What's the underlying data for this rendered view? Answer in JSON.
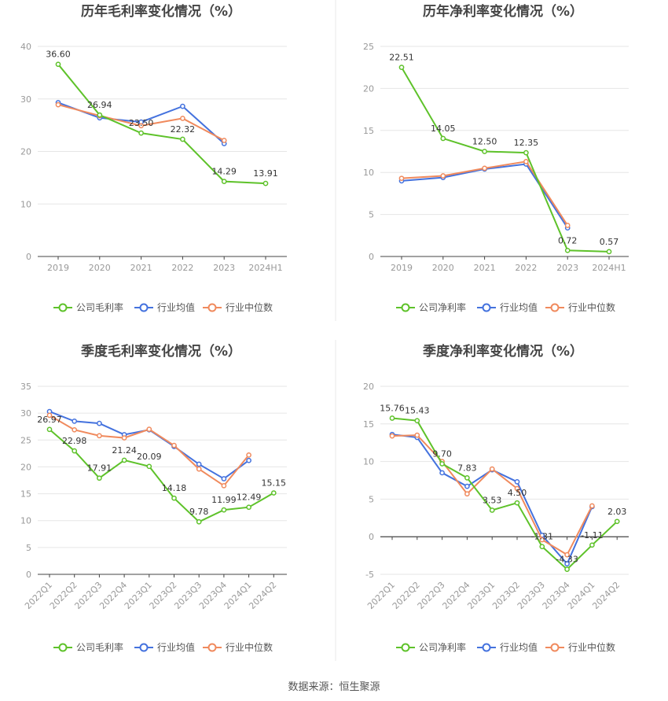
{
  "colors": {
    "company": "#5ec22a",
    "avg": "#4472de",
    "median": "#f08a5d"
  },
  "source": "数据来源：恒生聚源",
  "chart_data": [
    {
      "type": "line",
      "title": "历年毛利率变化情况（%）",
      "x": [
        "2019",
        "2020",
        "2021",
        "2022",
        "2023",
        "2024H1"
      ],
      "ylim": [
        0,
        40
      ],
      "yticks": [
        0,
        10,
        20,
        30,
        40
      ],
      "legend": [
        "公司毛利率",
        "行业均值",
        "行业中位数"
      ],
      "series": [
        {
          "name": "公司毛利率",
          "values": [
            36.6,
            26.94,
            23.5,
            22.32,
            14.29,
            13.91
          ]
        },
        {
          "name": "行业均值",
          "values": [
            29.3,
            26.4,
            25.6,
            28.6,
            21.5,
            null
          ]
        },
        {
          "name": "行业中位数",
          "values": [
            28.9,
            26.8,
            24.9,
            26.3,
            22.1,
            null
          ]
        }
      ],
      "labels": [
        "36.60",
        "26.94",
        "23.50",
        "22.32",
        "14.29",
        "13.91"
      ]
    },
    {
      "type": "line",
      "title": "历年净利率变化情况（%）",
      "x": [
        "2019",
        "2020",
        "2021",
        "2022",
        "2023",
        "2024H1"
      ],
      "ylim": [
        0,
        25
      ],
      "yticks": [
        0,
        5,
        10,
        15,
        20,
        25
      ],
      "legend": [
        "公司净利率",
        "行业均值",
        "行业中位数"
      ],
      "series": [
        {
          "name": "公司净利率",
          "values": [
            22.51,
            14.05,
            12.5,
            12.35,
            0.72,
            0.57
          ]
        },
        {
          "name": "行业均值",
          "values": [
            9.0,
            9.4,
            10.4,
            11.0,
            3.4,
            null
          ]
        },
        {
          "name": "行业中位数",
          "values": [
            9.3,
            9.6,
            10.5,
            11.3,
            3.7,
            null
          ]
        }
      ],
      "labels": [
        "22.51",
        "14.05",
        "12.50",
        "12.35",
        "0.72",
        "0.57"
      ]
    },
    {
      "type": "line",
      "title": "季度毛利率变化情况（%）",
      "x": [
        "2022Q1",
        "2022Q2",
        "2022Q3",
        "2022Q4",
        "2023Q1",
        "2023Q2",
        "2023Q3",
        "2023Q4",
        "2024Q1",
        "2024Q2"
      ],
      "ylim": [
        0,
        35
      ],
      "yticks": [
        0,
        5,
        10,
        15,
        20,
        25,
        30,
        35
      ],
      "legend": [
        "公司毛利率",
        "行业均值",
        "行业中位数"
      ],
      "series": [
        {
          "name": "公司毛利率",
          "values": [
            26.97,
            22.98,
            17.91,
            21.24,
            20.09,
            14.18,
            9.78,
            11.99,
            12.49,
            15.15
          ]
        },
        {
          "name": "行业均值",
          "values": [
            30.3,
            28.5,
            28.1,
            26.0,
            26.9,
            23.8,
            20.5,
            17.8,
            21.2,
            null
          ]
        },
        {
          "name": "行业中位数",
          "values": [
            29.6,
            26.9,
            25.8,
            25.4,
            27.0,
            24.0,
            19.6,
            16.5,
            22.2,
            null
          ]
        }
      ],
      "labels": [
        "26.97",
        "22.98",
        "17.91",
        "21.24",
        "20.09",
        "14.18",
        "9.78",
        "11.99",
        "12.49",
        "15.15"
      ]
    },
    {
      "type": "line",
      "title": "季度净利率变化情况（%）",
      "x": [
        "2022Q1",
        "2022Q2",
        "2022Q3",
        "2022Q4",
        "2023Q1",
        "2023Q2",
        "2023Q3",
        "2023Q4",
        "2024Q1",
        "2024Q2"
      ],
      "ylim": [
        -5,
        20
      ],
      "yticks": [
        -5,
        0,
        5,
        10,
        15,
        20
      ],
      "legend": [
        "公司净利率",
        "行业均值",
        "行业中位数"
      ],
      "series": [
        {
          "name": "公司净利率",
          "values": [
            15.76,
            15.43,
            9.7,
            7.83,
            3.53,
            4.5,
            -1.31,
            -4.33,
            -1.11,
            2.03
          ]
        },
        {
          "name": "行业均值",
          "values": [
            13.6,
            13.2,
            8.5,
            6.7,
            8.9,
            7.3,
            0.2,
            -3.6,
            4.0,
            null
          ]
        },
        {
          "name": "行业中位数",
          "values": [
            13.4,
            13.5,
            10.0,
            5.7,
            9.0,
            6.4,
            -0.4,
            -2.4,
            4.1,
            null
          ]
        }
      ],
      "labels": [
        "15.76",
        "15.43",
        "9.70",
        "7.83",
        "3.53",
        "4.50",
        "-1.31",
        "-4.33",
        "-1.11",
        "2.03"
      ]
    }
  ]
}
